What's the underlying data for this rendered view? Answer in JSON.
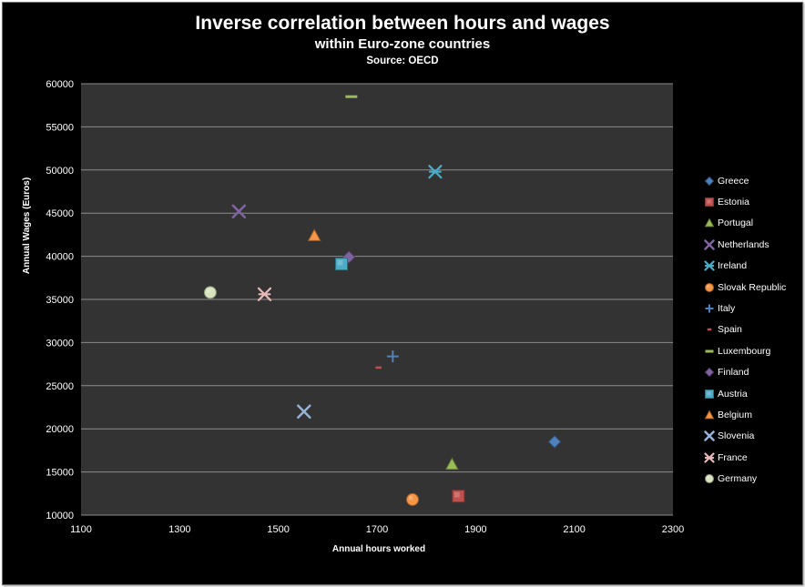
{
  "chart_data": {
    "type": "scatter",
    "title": "Inverse correlation between hours and wages",
    "subtitle": "within Euro-zone countries",
    "source": "Source: OECD",
    "xlabel": "Annual hours worked",
    "ylabel": "Annual Wages  (Euros)",
    "xlim": [
      1100,
      2300
    ],
    "ylim": [
      10000,
      60000
    ],
    "x_ticks": [
      1100,
      1300,
      1500,
      1700,
      1900,
      2100,
      2300
    ],
    "y_ticks": [
      10000,
      15000,
      20000,
      25000,
      30000,
      35000,
      40000,
      45000,
      50000,
      55000,
      60000
    ],
    "grid": "horizontal",
    "plot_background": "#333333",
    "legend_position": "right",
    "series": [
      {
        "name": "Greece",
        "marker": "diamond",
        "color": "#4f81bd",
        "x": 2060,
        "y": 18500
      },
      {
        "name": "Estonia",
        "marker": "square",
        "color": "#c0504d",
        "x": 1865,
        "y": 12200
      },
      {
        "name": "Portugal",
        "marker": "triangle",
        "color": "#9bbb59",
        "x": 1852,
        "y": 15900
      },
      {
        "name": "Netherlands",
        "marker": "x",
        "color": "#8064a2",
        "x": 1420,
        "y": 45200
      },
      {
        "name": "Ireland",
        "marker": "star",
        "color": "#4bacc6",
        "x": 1818,
        "y": 49800
      },
      {
        "name": "Slovak Republic",
        "marker": "circle",
        "color": "#f79646",
        "x": 1772,
        "y": 11800
      },
      {
        "name": "Italy",
        "marker": "plus",
        "color": "#4f81bd",
        "x": 1732,
        "y": 28400
      },
      {
        "name": "Spain",
        "marker": "short-dash",
        "color": "#c0504d",
        "x": 1703,
        "y": 27100
      },
      {
        "name": "Luxembourg",
        "marker": "long-dash",
        "color": "#9bbb59",
        "x": 1648,
        "y": 58500
      },
      {
        "name": "Finland",
        "marker": "diamond",
        "color": "#8064a2",
        "x": 1643,
        "y": 39900
      },
      {
        "name": "Austria",
        "marker": "square",
        "color": "#4bacc6",
        "x": 1628,
        "y": 39100
      },
      {
        "name": "Belgium",
        "marker": "triangle",
        "color": "#f79646",
        "x": 1573,
        "y": 42400
      },
      {
        "name": "Slovenia",
        "marker": "x",
        "color": "#95b3d7",
        "x": 1552,
        "y": 22000
      },
      {
        "name": "France",
        "marker": "star",
        "color": "#e6b9b8",
        "x": 1472,
        "y": 35600
      },
      {
        "name": "Germany",
        "marker": "circle",
        "color": "#d7e4bd",
        "x": 1362,
        "y": 35800
      }
    ]
  }
}
